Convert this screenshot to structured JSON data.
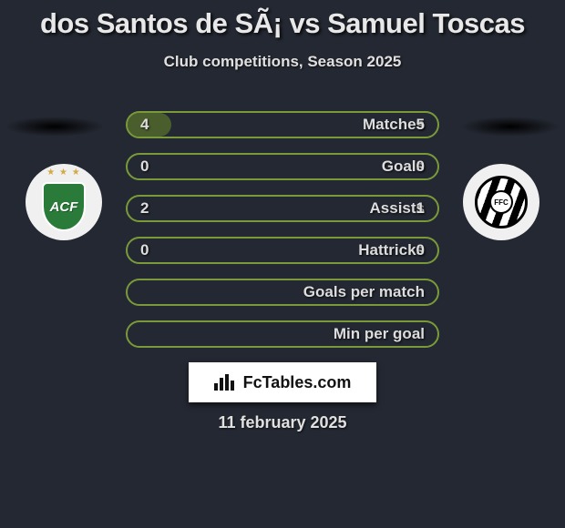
{
  "title": "dos Santos de SÃ¡ vs Samuel Toscas",
  "title_fontsize": 31,
  "subtitle": "Club competitions, Season 2025",
  "subtitle_fontsize": 17,
  "colors": {
    "background": "#242832",
    "text": "#e8e8e8",
    "bar_border": "#7a9a3a",
    "bar_fill": "#6a8a2a",
    "watermark_bg": "#ffffff",
    "watermark_text": "#111111"
  },
  "player1_badge": {
    "type": "shield",
    "text": "ACF",
    "primary_color": "#2a7a3a",
    "has_stars": true
  },
  "player2_badge": {
    "type": "striped-circle",
    "text": "FFC",
    "stripe_colors": [
      "#000000",
      "#ffffff"
    ]
  },
  "stats": [
    {
      "label": "Matches",
      "p1": "4",
      "p2": "5",
      "p1_fill_pct": 14,
      "p2_fill_pct": 0
    },
    {
      "label": "Goals",
      "p1": "0",
      "p2": "0",
      "p1_fill_pct": 0,
      "p2_fill_pct": 0
    },
    {
      "label": "Assists",
      "p1": "2",
      "p2": "1",
      "p1_fill_pct": 0,
      "p2_fill_pct": 0
    },
    {
      "label": "Hattricks",
      "p1": "0",
      "p2": "0",
      "p1_fill_pct": 0,
      "p2_fill_pct": 0
    },
    {
      "label": "Goals per match",
      "p1": "",
      "p2": "",
      "p1_fill_pct": 0,
      "p2_fill_pct": 0
    },
    {
      "label": "Min per goal",
      "p1": "",
      "p2": "",
      "p1_fill_pct": 0,
      "p2_fill_pct": 0
    }
  ],
  "bar_label_fontsize": 17,
  "bar_value_fontsize": 17,
  "watermark_text": "FcTables.com",
  "date_text": "11 february 2025",
  "date_fontsize": 18
}
